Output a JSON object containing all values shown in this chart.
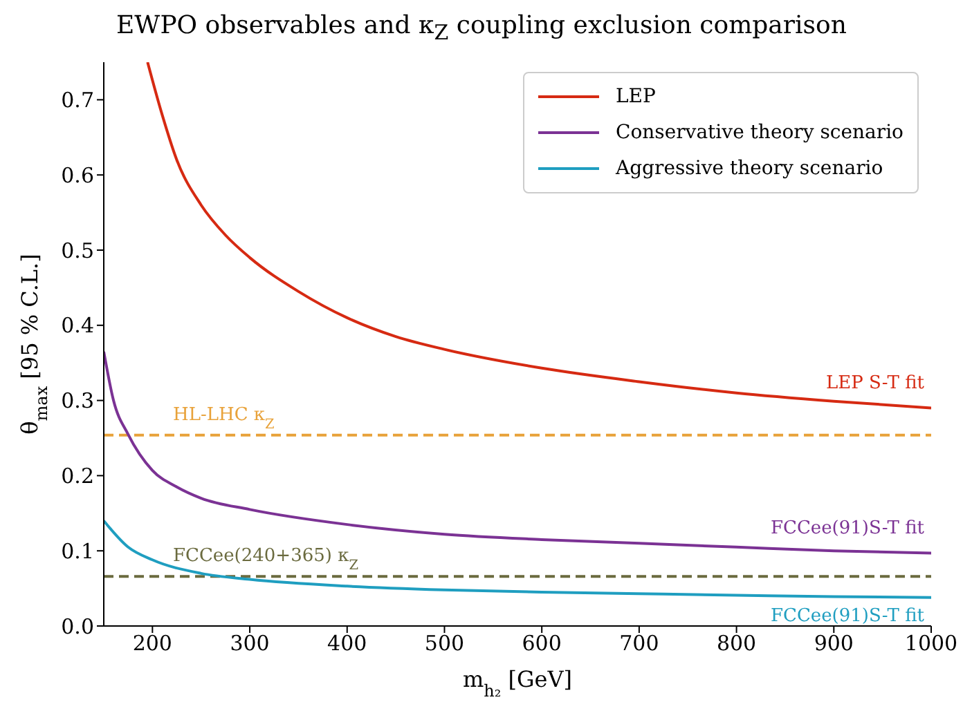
{
  "chart_data": {
    "type": "line",
    "title": "EWPO observables and κ$_{Z}$ coupling exclusion comparison",
    "xlabel": "m$_{h₂}$ [GeV]",
    "ylabel": "θ$_{max}$ [95 % C.L.]",
    "xlim": [
      150,
      1000
    ],
    "ylim": [
      0,
      0.75
    ],
    "xticks": [
      200,
      300,
      400,
      500,
      600,
      700,
      800,
      900,
      1000
    ],
    "yticks": [
      {
        "value": 0,
        "label": "0.0"
      },
      {
        "value": 0.1,
        "label": "0.1"
      },
      {
        "value": 0.2,
        "label": "0.2"
      },
      {
        "value": 0.3,
        "label": "0.3"
      },
      {
        "value": 0.4,
        "label": "0.4"
      },
      {
        "value": 0.5,
        "label": "0.5"
      },
      {
        "value": 0.6,
        "label": "0.6"
      },
      {
        "value": 0.7,
        "label": "0.7"
      }
    ],
    "grid": false,
    "legend": "top right",
    "marker": "none",
    "line_style": "solid",
    "series": [
      {
        "name": "LEP",
        "color": "#d62a12",
        "x": [
          195,
          210,
          225,
          250,
          275,
          300,
          350,
          400,
          450,
          500,
          600,
          700,
          800,
          900,
          1000
        ],
        "values": [
          0.75,
          0.68,
          0.62,
          0.56,
          0.52,
          0.49,
          0.445,
          0.41,
          0.385,
          0.368,
          0.343,
          0.325,
          0.31,
          0.299,
          0.29
        ]
      },
      {
        "name": "Conservative theory scenario",
        "color": "#7b3294",
        "x": [
          150,
          160,
          175,
          200,
          225,
          250,
          300,
          400,
          500,
          600,
          700,
          800,
          900,
          1000
        ],
        "values": [
          0.365,
          0.3,
          0.255,
          0.207,
          0.185,
          0.17,
          0.155,
          0.135,
          0.122,
          0.115,
          0.11,
          0.105,
          0.1,
          0.097
        ]
      },
      {
        "name": "Aggressive theory scenario",
        "color": "#1f9ec0",
        "x": [
          150,
          175,
          200,
          250,
          300,
          400,
          500,
          600,
          700,
          800,
          900,
          1000
        ],
        "values": [
          0.14,
          0.105,
          0.088,
          0.07,
          0.062,
          0.053,
          0.048,
          0.045,
          0.043,
          0.041,
          0.039,
          0.038
        ]
      }
    ],
    "ref_lines": [
      {
        "axis": "y",
        "value": 0.254,
        "label": "HL-LHC κ$_{Z}$",
        "color": "#e8a23a",
        "line_style": "dashed"
      },
      {
        "axis": "y",
        "value": 0.066,
        "label": "FCCee(240+365) κ$_{Z}$",
        "color": "#6b6b3f",
        "line_style": "dashed"
      }
    ],
    "annotations": [
      "LEP S-T fit",
      "FCCee(91)S-T fit",
      "FCCee(91)S-T fit"
    ]
  }
}
